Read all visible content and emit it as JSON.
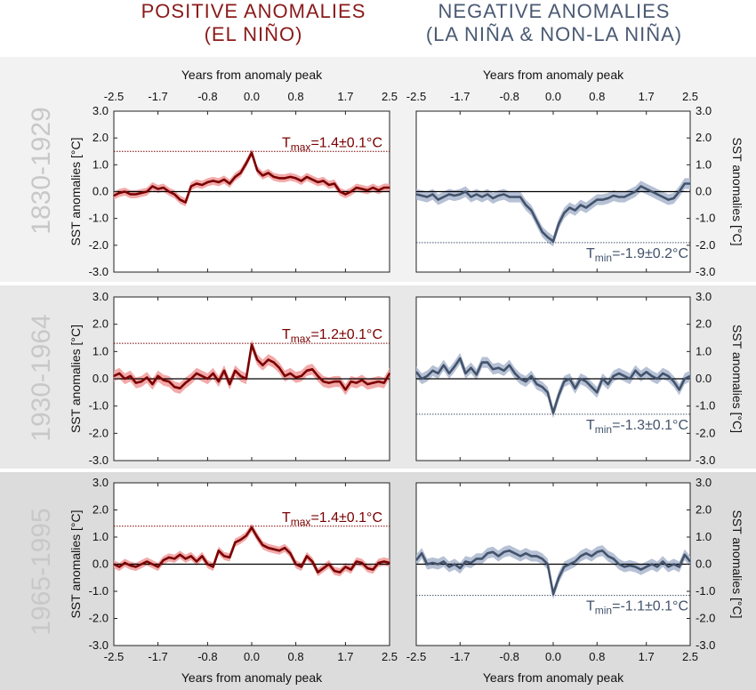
{
  "titles": {
    "positive": [
      "POSITIVE ANOMALIES",
      "(EL NIÑO)"
    ],
    "negative": [
      "NEGATIVE ANOMALIES",
      "(LA NIÑA & NON-LA NIÑA)"
    ]
  },
  "colors": {
    "positive_line": "#7a0000",
    "positive_band": "#f2a0a0",
    "negative_line": "#43536b",
    "negative_band": "#aebad0",
    "period_label": "#c8c8c8",
    "band_light": "#f2f2f2",
    "band_mid": "#e6e6e6",
    "band_dark": "#dadada"
  },
  "periods": [
    "1830-1929",
    "1930-1964",
    "1965-1995"
  ],
  "axes": {
    "x_label": "Years from anomaly peak",
    "y_label": "SST anomalies [°C]",
    "x_ticks": [
      "-2.5",
      "-1.7",
      "-0.8",
      "0.0",
      "0.8",
      "1.7",
      "2.5"
    ],
    "y_ticks": [
      "3.0",
      "2.0",
      "1.0",
      "0.0",
      "-1.0",
      "-2.0",
      "-3.0"
    ]
  },
  "chart_data": [
    {
      "type": "line",
      "period": "1830-1929",
      "side": "positive",
      "annotation": {
        "prefix": "T",
        "sub": "max",
        "text": "=1.4±0.1°C",
        "level": 1.5
      },
      "xlim": [
        -2.5,
        2.5
      ],
      "ylim": [
        -3.0,
        3.0
      ],
      "x": [
        -2.5,
        -2.4,
        -2.3,
        -2.2,
        -2.1,
        -2.0,
        -1.9,
        -1.8,
        -1.7,
        -1.6,
        -1.5,
        -1.4,
        -1.3,
        -1.2,
        -1.1,
        -1.0,
        -0.9,
        -0.8,
        -0.7,
        -0.6,
        -0.5,
        -0.4,
        -0.3,
        -0.2,
        -0.1,
        0.0,
        0.1,
        0.2,
        0.3,
        0.4,
        0.5,
        0.6,
        0.7,
        0.8,
        0.9,
        1.0,
        1.1,
        1.2,
        1.3,
        1.4,
        1.5,
        1.6,
        1.7,
        1.8,
        1.9,
        2.0,
        2.1,
        2.2,
        2.3,
        2.4,
        2.5
      ],
      "y": [
        -0.15,
        -0.05,
        0.0,
        -0.1,
        -0.1,
        -0.05,
        0.0,
        0.2,
        0.1,
        0.15,
        0.0,
        -0.1,
        -0.3,
        -0.4,
        0.2,
        0.3,
        0.25,
        0.35,
        0.4,
        0.35,
        0.45,
        0.3,
        0.55,
        0.7,
        1.05,
        1.45,
        0.8,
        0.6,
        0.7,
        0.55,
        0.5,
        0.5,
        0.55,
        0.5,
        0.4,
        0.55,
        0.45,
        0.35,
        0.4,
        0.25,
        0.3,
        0.0,
        -0.1,
        0.0,
        0.15,
        0.1,
        0.05,
        0.15,
        0.05,
        0.15,
        0.15
      ],
      "err": 0.15
    },
    {
      "type": "line",
      "period": "1830-1929",
      "side": "negative",
      "annotation": {
        "prefix": "T",
        "sub": "min",
        "text": "=-1.9±0.2°C",
        "level": -1.9
      },
      "xlim": [
        -2.5,
        2.5
      ],
      "ylim": [
        -3.0,
        3.0
      ],
      "x": [
        -2.5,
        -2.4,
        -2.3,
        -2.2,
        -2.1,
        -2.0,
        -1.9,
        -1.8,
        -1.7,
        -1.6,
        -1.5,
        -1.4,
        -1.3,
        -1.2,
        -1.1,
        -1.0,
        -0.9,
        -0.8,
        -0.7,
        -0.6,
        -0.5,
        -0.4,
        -0.3,
        -0.2,
        -0.1,
        0.0,
        0.1,
        0.2,
        0.3,
        0.4,
        0.5,
        0.6,
        0.7,
        0.8,
        0.9,
        1.0,
        1.1,
        1.2,
        1.3,
        1.4,
        1.5,
        1.6,
        1.7,
        1.8,
        1.9,
        2.0,
        2.1,
        2.2,
        2.3,
        2.4,
        2.5
      ],
      "y": [
        -0.1,
        -0.15,
        -0.2,
        -0.1,
        -0.3,
        -0.2,
        -0.1,
        -0.15,
        -0.1,
        0.0,
        -0.2,
        -0.1,
        -0.2,
        -0.1,
        -0.25,
        -0.15,
        -0.1,
        -0.2,
        -0.2,
        -0.2,
        -0.5,
        -0.7,
        -1.1,
        -1.5,
        -1.7,
        -1.85,
        -1.2,
        -0.8,
        -0.6,
        -0.7,
        -0.5,
        -0.6,
        -0.45,
        -0.3,
        -0.3,
        -0.25,
        -0.15,
        -0.2,
        -0.2,
        -0.1,
        0.0,
        0.2,
        0.1,
        0.0,
        -0.1,
        -0.2,
        -0.3,
        -0.25,
        0.0,
        0.3,
        0.3
      ],
      "err": 0.2
    },
    {
      "type": "line",
      "period": "1930-1964",
      "side": "positive",
      "annotation": {
        "prefix": "T",
        "sub": "max",
        "text": "=1.2±0.1°C",
        "level": 1.3
      },
      "xlim": [
        -2.5,
        2.5
      ],
      "ylim": [
        -3.0,
        3.0
      ],
      "x": [
        -2.5,
        -2.4,
        -2.3,
        -2.2,
        -2.1,
        -2.0,
        -1.9,
        -1.8,
        -1.7,
        -1.6,
        -1.5,
        -1.4,
        -1.3,
        -1.2,
        -1.1,
        -1.0,
        -0.9,
        -0.8,
        -0.7,
        -0.6,
        -0.5,
        -0.4,
        -0.3,
        -0.2,
        -0.1,
        0.0,
        0.1,
        0.2,
        0.3,
        0.4,
        0.5,
        0.6,
        0.7,
        0.8,
        0.9,
        1.0,
        1.1,
        1.2,
        1.3,
        1.4,
        1.5,
        1.6,
        1.7,
        1.8,
        1.9,
        2.0,
        2.1,
        2.2,
        2.3,
        2.4,
        2.5
      ],
      "y": [
        0.1,
        0.2,
        0.0,
        0.1,
        -0.15,
        -0.1,
        0.05,
        -0.2,
        0.1,
        -0.05,
        -0.1,
        -0.3,
        -0.35,
        -0.15,
        0.0,
        0.2,
        0.1,
        0.0,
        0.2,
        -0.1,
        0.3,
        -0.2,
        0.3,
        0.1,
        0.0,
        1.25,
        0.7,
        0.5,
        0.7,
        0.6,
        0.4,
        0.1,
        0.2,
        0.05,
        0.1,
        0.3,
        0.35,
        0.1,
        -0.1,
        -0.15,
        -0.1,
        -0.1,
        -0.4,
        -0.1,
        -0.15,
        -0.05,
        -0.2,
        -0.15,
        -0.1,
        -0.15,
        0.2
      ],
      "err": 0.2
    },
    {
      "type": "line",
      "period": "1930-1964",
      "side": "negative",
      "annotation": {
        "prefix": "T",
        "sub": "min",
        "text": "=-1.3±0.1°C",
        "level": -1.3
      },
      "xlim": [
        -2.5,
        2.5
      ],
      "ylim": [
        -3.0,
        3.0
      ],
      "x": [
        -2.5,
        -2.4,
        -2.3,
        -2.2,
        -2.1,
        -2.0,
        -1.9,
        -1.8,
        -1.7,
        -1.6,
        -1.5,
        -1.4,
        -1.3,
        -1.2,
        -1.1,
        -1.0,
        -0.9,
        -0.8,
        -0.7,
        -0.6,
        -0.5,
        -0.4,
        -0.3,
        -0.2,
        -0.1,
        0.0,
        0.1,
        0.2,
        0.3,
        0.4,
        0.5,
        0.6,
        0.7,
        0.8,
        0.9,
        1.0,
        1.1,
        1.2,
        1.3,
        1.4,
        1.5,
        1.6,
        1.7,
        1.8,
        1.9,
        2.0,
        2.1,
        2.2,
        2.3,
        2.4,
        2.5
      ],
      "y": [
        0.25,
        0.0,
        0.1,
        0.3,
        0.2,
        0.5,
        0.2,
        0.45,
        0.75,
        0.2,
        0.4,
        0.15,
        0.6,
        0.6,
        0.35,
        0.4,
        0.3,
        0.5,
        0.2,
        0.0,
        -0.1,
        0.1,
        -0.2,
        -0.3,
        -0.5,
        -1.25,
        -0.6,
        -0.1,
        0.0,
        -0.35,
        0.0,
        -0.1,
        -0.3,
        -0.5,
        0.0,
        -0.2,
        0.1,
        0.2,
        0.1,
        0.0,
        0.3,
        0.1,
        0.25,
        0.1,
        0.0,
        0.2,
        0.1,
        -0.1,
        -0.4,
        0.0,
        0.1
      ],
      "err": 0.2
    },
    {
      "type": "line",
      "period": "1965-1995",
      "side": "positive",
      "annotation": {
        "prefix": "T",
        "sub": "max",
        "text": "=1.4±0.1°C",
        "level": 1.4
      },
      "xlim": [
        -2.5,
        2.5
      ],
      "ylim": [
        -3.0,
        3.0
      ],
      "x": [
        -2.5,
        -2.4,
        -2.3,
        -2.2,
        -2.1,
        -2.0,
        -1.9,
        -1.8,
        -1.7,
        -1.6,
        -1.5,
        -1.4,
        -1.3,
        -1.2,
        -1.1,
        -1.0,
        -0.9,
        -0.8,
        -0.7,
        -0.6,
        -0.5,
        -0.4,
        -0.3,
        -0.2,
        -0.1,
        0.0,
        0.1,
        0.2,
        0.3,
        0.4,
        0.5,
        0.6,
        0.7,
        0.8,
        0.9,
        1.0,
        1.1,
        1.2,
        1.3,
        1.4,
        1.5,
        1.6,
        1.7,
        1.8,
        1.9,
        2.0,
        2.1,
        2.2,
        2.3,
        2.4,
        2.5
      ],
      "y": [
        0.0,
        -0.1,
        0.05,
        -0.05,
        -0.1,
        0.0,
        0.1,
        0.0,
        -0.1,
        0.15,
        0.25,
        0.2,
        0.35,
        0.2,
        0.3,
        0.1,
        0.3,
        0.0,
        -0.1,
        0.5,
        0.3,
        0.25,
        0.8,
        0.9,
        1.05,
        1.35,
        1.0,
        0.7,
        0.6,
        0.55,
        0.5,
        0.6,
        0.4,
        0.0,
        -0.1,
        0.3,
        0.1,
        -0.3,
        -0.15,
        0.0,
        -0.25,
        -0.3,
        -0.1,
        -0.2,
        0.1,
        0.05,
        -0.15,
        -0.2,
        0.05,
        0.1,
        0.05
      ],
      "err": 0.15
    },
    {
      "type": "line",
      "period": "1965-1995",
      "side": "negative",
      "annotation": {
        "prefix": "T",
        "sub": "min",
        "text": "=-1.1±0.1°C",
        "level": -1.15
      },
      "xlim": [
        -2.5,
        2.5
      ],
      "ylim": [
        -3.0,
        3.0
      ],
      "x": [
        -2.5,
        -2.4,
        -2.3,
        -2.2,
        -2.1,
        -2.0,
        -1.9,
        -1.8,
        -1.7,
        -1.6,
        -1.5,
        -1.4,
        -1.3,
        -1.2,
        -1.1,
        -1.0,
        -0.9,
        -0.8,
        -0.7,
        -0.6,
        -0.5,
        -0.4,
        -0.3,
        -0.2,
        -0.1,
        0.0,
        0.1,
        0.2,
        0.3,
        0.4,
        0.5,
        0.6,
        0.7,
        0.8,
        0.9,
        1.0,
        1.1,
        1.2,
        1.3,
        1.4,
        1.5,
        1.6,
        1.7,
        1.8,
        1.9,
        2.0,
        2.1,
        2.2,
        2.3,
        2.4,
        2.5
      ],
      "y": [
        0.15,
        0.4,
        0.0,
        0.05,
        0.0,
        0.1,
        -0.1,
        0.0,
        -0.15,
        0.1,
        0.05,
        0.2,
        0.2,
        0.4,
        0.45,
        0.3,
        0.45,
        0.5,
        0.4,
        0.3,
        0.4,
        0.3,
        0.3,
        0.2,
        0.0,
        -1.1,
        -0.5,
        -0.1,
        0.0,
        0.1,
        0.3,
        0.4,
        0.3,
        0.45,
        0.5,
        0.3,
        0.2,
        0.0,
        -0.1,
        -0.05,
        -0.1,
        -0.2,
        -0.1,
        0.0,
        -0.1,
        0.1,
        -0.1,
        0.0,
        -0.1,
        0.35,
        0.1
      ],
      "err": 0.2
    }
  ]
}
